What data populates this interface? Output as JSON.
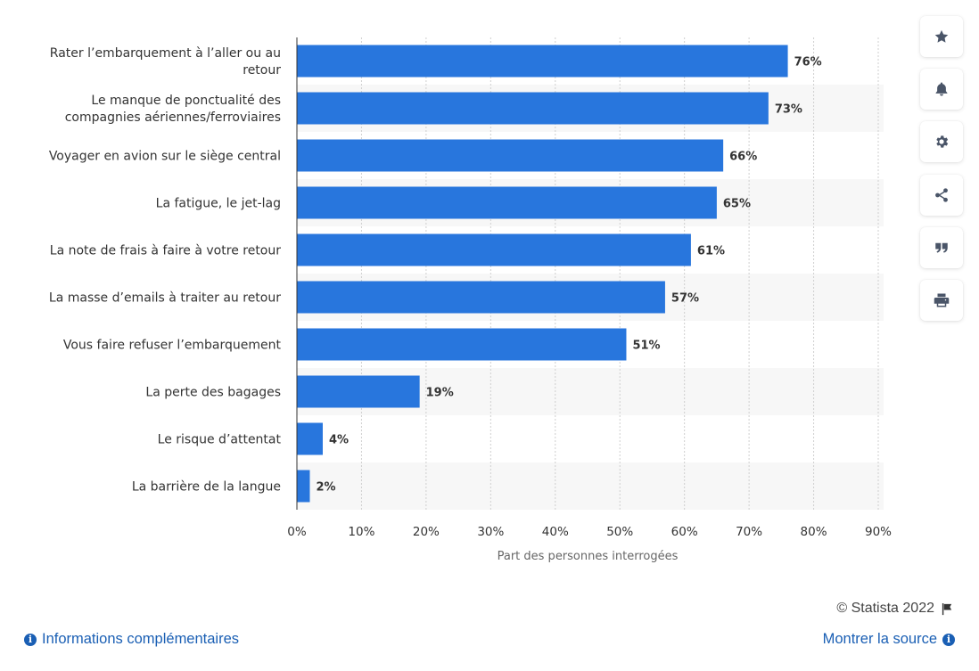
{
  "chart_data": {
    "type": "bar",
    "orientation": "horizontal",
    "categories": [
      "Rater l’embarquement à l’aller ou au retour",
      "Le manque de ponctualité des compagnies aériennes/ferroviaires",
      "Voyager en avion sur le siège central",
      "La fatigue, le jet-lag",
      "La note de frais à faire à votre retour",
      "La masse d’emails à traiter au retour",
      "Vous faire refuser l’embarquement",
      "La perte des bagages",
      "Le risque d’attentat",
      "La barrière de la langue"
    ],
    "category_lines": [
      [
        "Rater l’embarquement à l’aller ou au",
        "retour"
      ],
      [
        "Le manque de ponctualité des",
        "compagnies aériennes/ferroviaires"
      ],
      [
        "Voyager en avion sur le siège central"
      ],
      [
        "La fatigue, le jet-lag"
      ],
      [
        "La note de frais à faire à votre retour"
      ],
      [
        "La masse d’emails à traiter au retour"
      ],
      [
        "Vous faire refuser l’embarquement"
      ],
      [
        "La perte des bagages"
      ],
      [
        "Le risque d’attentat"
      ],
      [
        "La barrière de la langue"
      ]
    ],
    "values": [
      76,
      73,
      66,
      65,
      61,
      57,
      51,
      19,
      4,
      2
    ],
    "value_labels": [
      "76%",
      "73%",
      "66%",
      "65%",
      "61%",
      "57%",
      "51%",
      "19%",
      "4%",
      "2%"
    ],
    "xlabel": "Part des personnes interrogées",
    "ylabel": "",
    "xlim": [
      0,
      90
    ],
    "ticks": [
      0,
      10,
      20,
      30,
      40,
      50,
      60,
      70,
      80,
      90
    ],
    "tick_labels": [
      "0%",
      "10%",
      "20%",
      "30%",
      "40%",
      "50%",
      "60%",
      "70%",
      "80%",
      "90%"
    ],
    "grid": true,
    "bar_color": "#2876dd",
    "alt_row_color": "#f7f7f7"
  },
  "toolbar": {
    "buttons": [
      {
        "name": "favorite-button",
        "icon": "star-icon"
      },
      {
        "name": "notification-button",
        "icon": "bell-icon"
      },
      {
        "name": "settings-button",
        "icon": "gear-icon"
      },
      {
        "name": "share-button",
        "icon": "share-icon"
      },
      {
        "name": "cite-button",
        "icon": "quote-icon"
      },
      {
        "name": "print-button",
        "icon": "print-icon"
      }
    ]
  },
  "footer": {
    "copyright": "© Statista 2022",
    "info_link": "Informations complémentaires",
    "source_link": "Montrer la source"
  }
}
